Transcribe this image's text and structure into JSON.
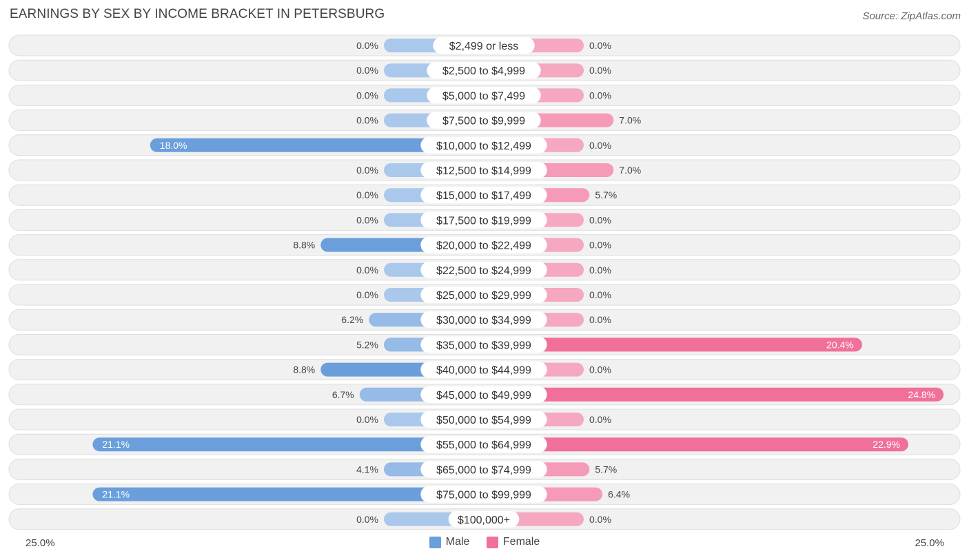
{
  "header": {
    "title": "EARNINGS BY SEX BY INCOME BRACKET IN PETERSBURG",
    "source": "Source: ZipAtlas.com"
  },
  "colors": {
    "male": "#6a9fdc",
    "male_light": "#a9c8ec",
    "female": "#f07099",
    "female_light": "#f5a8c0"
  },
  "axis": {
    "left_label": "25.0%",
    "right_label": "25.0%"
  },
  "legend": {
    "male_label": "Male",
    "female_label": "Female"
  },
  "chart_data": {
    "type": "bar",
    "orientation": "diverging-horizontal",
    "title": "EARNINGS BY SEX BY INCOME BRACKET IN PETERSBURG",
    "xlim": [
      -25,
      25
    ],
    "categories": [
      "$2,499 or less",
      "$2,500 to $4,999",
      "$5,000 to $7,499",
      "$7,500 to $9,999",
      "$10,000 to $12,499",
      "$12,500 to $14,999",
      "$15,000 to $17,499",
      "$17,500 to $19,999",
      "$20,000 to $22,499",
      "$22,500 to $24,999",
      "$25,000 to $29,999",
      "$30,000 to $34,999",
      "$35,000 to $39,999",
      "$40,000 to $44,999",
      "$45,000 to $49,999",
      "$50,000 to $54,999",
      "$55,000 to $64,999",
      "$65,000 to $74,999",
      "$75,000 to $99,999",
      "$100,000+"
    ],
    "series": [
      {
        "name": "Male",
        "values": [
          0.0,
          0.0,
          0.0,
          0.0,
          18.0,
          0.0,
          0.0,
          0.0,
          8.8,
          0.0,
          0.0,
          6.2,
          5.2,
          8.8,
          6.7,
          0.0,
          21.1,
          4.1,
          21.1,
          0.0
        ],
        "labels": [
          "0.0%",
          "0.0%",
          "0.0%",
          "0.0%",
          "18.0%",
          "0.0%",
          "0.0%",
          "0.0%",
          "8.8%",
          "0.0%",
          "0.0%",
          "6.2%",
          "5.2%",
          "8.8%",
          "6.7%",
          "0.0%",
          "21.1%",
          "4.1%",
          "21.1%",
          "0.0%"
        ]
      },
      {
        "name": "Female",
        "values": [
          0.0,
          0.0,
          0.0,
          7.0,
          0.0,
          7.0,
          5.7,
          0.0,
          0.0,
          0.0,
          0.0,
          0.0,
          20.4,
          0.0,
          24.8,
          0.0,
          22.9,
          5.7,
          6.4,
          0.0
        ],
        "labels": [
          "0.0%",
          "0.0%",
          "0.0%",
          "7.0%",
          "0.0%",
          "7.0%",
          "5.7%",
          "0.0%",
          "0.0%",
          "0.0%",
          "0.0%",
          "0.0%",
          "20.4%",
          "0.0%",
          "24.8%",
          "0.0%",
          "22.9%",
          "5.7%",
          "6.4%",
          "0.0%"
        ]
      }
    ]
  }
}
